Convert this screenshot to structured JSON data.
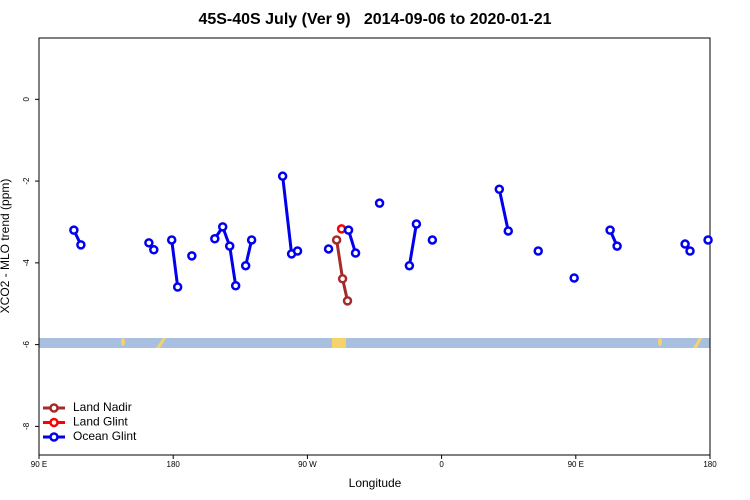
{
  "chart_data": {
    "type": "line",
    "title": "45S-40S July (Ver 9)   2014-09-06 to 2020-01-21",
    "xlabel": "Longitude",
    "ylabel": "XCO2 - MLO trend (ppm)",
    "xlim": [
      90,
      540
    ],
    "xticks": [
      {
        "value": 90,
        "label": "90 E"
      },
      180,
      {
        "value": 270,
        "label": "90 W"
      },
      {
        "value": 360,
        "label": "0"
      },
      {
        "value": 450,
        "label": "90 E"
      },
      {
        "value": 540,
        "label": "180"
      }
    ],
    "ylim": [
      -8.7,
      1.5
    ],
    "yticks": [
      0,
      -2,
      -4,
      -6,
      -8
    ],
    "legend": "bottom-left",
    "series": [
      {
        "name": "Land Nadir",
        "color": "#a52a2a",
        "x": [
          289.6,
          293.6,
          296.9
        ],
        "values": [
          -3.44,
          -4.39,
          -4.93
        ]
      },
      {
        "name": "Land Glint",
        "color": "#ff0000",
        "x": [
          292.9
        ],
        "values": [
          -3.17
        ]
      },
      {
        "name": "Ocean Glint",
        "color": "#0000ee",
        "x": [
          113.4,
          118.1,
          null,
          163.7,
          167,
          null,
          179,
          183,
          null,
          192.5,
          null,
          207.9,
          213.2,
          217.9,
          221.9,
          null,
          228.6,
          232.6,
          null,
          253.4,
          259.4,
          263.4,
          null,
          284.2,
          null,
          297.6,
          302.3,
          null,
          318.4,
          null,
          338.4,
          343.1,
          null,
          353.8,
          null,
          398.7,
          404.7,
          null,
          424.8,
          null,
          448.9,
          null,
          473,
          477.7,
          null,
          523.3,
          526.6,
          null,
          538.7
        ],
        "values": [
          -3.2,
          -3.56,
          null,
          -3.51,
          -3.68,
          null,
          -3.44,
          -4.59,
          null,
          -3.83,
          null,
          -3.41,
          -3.12,
          -3.59,
          -4.56,
          null,
          -4.07,
          -3.44,
          null,
          -1.88,
          -3.78,
          -3.71,
          null,
          -3.66,
          null,
          -3.2,
          -3.76,
          null,
          -2.54,
          null,
          -4.07,
          -3.05,
          null,
          -3.44,
          null,
          -2.2,
          -3.22,
          null,
          -3.71,
          null,
          -4.37,
          null,
          -3.2,
          -3.59,
          null,
          -3.54,
          -3.71,
          null,
          -3.44
        ]
      }
    ]
  }
}
